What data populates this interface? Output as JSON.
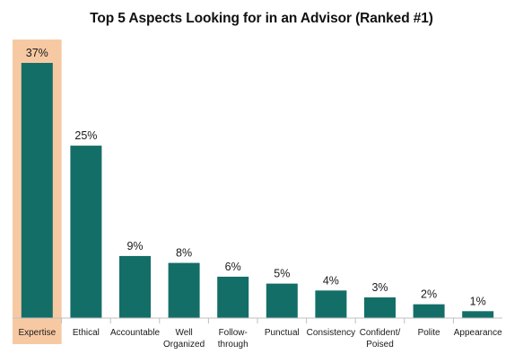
{
  "chart_data": {
    "type": "bar",
    "title": "Top 5 Aspects Looking for in an Advisor (Ranked #1)",
    "categories": [
      "Expertise",
      "Ethical",
      "Accountable",
      "Well Organized",
      "Follow-through",
      "Punctual",
      "Consistency",
      "Confident/ Poised",
      "Polite",
      "Appearance"
    ],
    "category_lines": [
      [
        "Expertise"
      ],
      [
        "Ethical"
      ],
      [
        "Accountable"
      ],
      [
        "Well",
        "Organized"
      ],
      [
        "Follow-",
        "through"
      ],
      [
        "Punctual"
      ],
      [
        "Consistency"
      ],
      [
        "Confident/",
        "Poised"
      ],
      [
        "Polite"
      ],
      [
        "Appearance"
      ]
    ],
    "values": [
      37,
      25,
      9,
      8,
      6,
      5,
      4,
      3,
      2,
      1
    ],
    "value_labels": [
      "37%",
      "25%",
      "9%",
      "8%",
      "6%",
      "5%",
      "4%",
      "3%",
      "2%",
      "1%"
    ],
    "highlight_index": 0,
    "ylim": [
      0,
      40
    ],
    "grid": false,
    "legend": "none",
    "colors": {
      "bar": "#146e68",
      "highlight": "#f7c9a3",
      "axis": "#bfbfbf"
    }
  }
}
